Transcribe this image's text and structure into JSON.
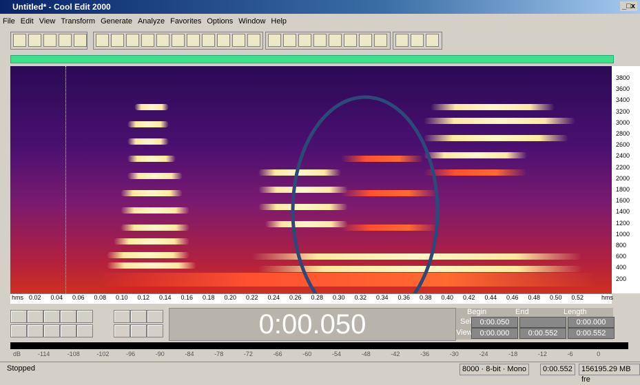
{
  "window": {
    "title": "Untitled* - Cool Edit 2000",
    "controls": [
      "_",
      "□",
      "x"
    ]
  },
  "menu": [
    "File",
    "Edit",
    "View",
    "Transform",
    "Generate",
    "Analyze",
    "Favorites",
    "Options",
    "Window",
    "Help"
  ],
  "frequency_axis": [
    "3800",
    "3600",
    "3400",
    "3200",
    "3000",
    "2800",
    "2600",
    "2400",
    "2200",
    "2000",
    "1800",
    "1600",
    "1400",
    "1200",
    "1000",
    "800",
    "600",
    "400",
    "200"
  ],
  "time_axis": {
    "unit": "hms",
    "labels": [
      "0.02",
      "0.04",
      "0.06",
      "0.08",
      "0.10",
      "0.12",
      "0.14",
      "0.16",
      "0.18",
      "0.20",
      "0.22",
      "0.24",
      "0.26",
      "0.28",
      "0.30",
      "0.32",
      "0.34",
      "0.36",
      "0.38",
      "0.40",
      "0.42",
      "0.44",
      "0.46",
      "0.48",
      "0.50",
      "0.52"
    ]
  },
  "time_display": "0:00.050",
  "selection": {
    "headers": [
      "Begin",
      "End",
      "Length"
    ],
    "rows": [
      {
        "label": "Sel",
        "values": [
          "0:00.050",
          "",
          "0:00.000"
        ]
      },
      {
        "label": "View",
        "values": [
          "0:00.000",
          "0:00.552",
          "0:00.552"
        ]
      }
    ]
  },
  "meter": [
    "dB",
    "-114",
    "-108",
    "-102",
    "-96",
    "-90",
    "-84",
    "-78",
    "-72",
    "-66",
    "-60",
    "-54",
    "-48",
    "-42",
    "-36",
    "-30",
    "-24",
    "-18",
    "-12",
    "-6",
    "0"
  ],
  "status": {
    "state": "Stopped",
    "format": "8000 · 8-bit · Mono",
    "length": "0:00.552",
    "free": "156195.29 MB fre"
  }
}
